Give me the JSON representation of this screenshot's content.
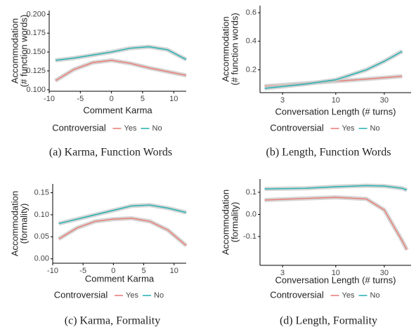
{
  "chart_data": [
    {
      "type": "line",
      "caption": "(a) Karma, Function Words",
      "xlabel": "Comment Karma",
      "ylabel": [
        "Accommodation",
        "(# function words)"
      ],
      "legend_title": "Controversial",
      "xlim": [
        -10,
        12
      ],
      "xticks": [
        -10,
        -5,
        0,
        5,
        10
      ],
      "ylim": [
        0.098,
        0.205
      ],
      "yticks": [
        {
          "value": 0.1,
          "label": "0.100"
        },
        0.125,
        {
          "value": 0.15,
          "label": "0.150"
        },
        0.175,
        {
          "value": 0.2,
          "label": "0.200"
        }
      ],
      "x": [
        -9,
        -6,
        -3,
        0,
        3,
        6,
        9,
        12
      ],
      "series": [
        {
          "name": "Yes",
          "color": "#e8827a",
          "values": [
            0.112,
            0.127,
            0.136,
            0.139,
            0.135,
            0.129,
            0.124,
            0.119
          ]
        },
        {
          "name": "No",
          "color": "#2fb3b3",
          "values": [
            0.139,
            0.142,
            0.146,
            0.15,
            0.155,
            0.157,
            0.153,
            0.14
          ]
        }
      ]
    },
    {
      "type": "line",
      "caption": "(b) Length, Function Words",
      "xlabel": "Conversation Length (# turns)",
      "ylabel": [
        "Accommodation",
        "(# function words)"
      ],
      "legend_title": "Controversial",
      "xlog": true,
      "xlim": [
        1.8,
        55
      ],
      "xticks": [
        3,
        10,
        30
      ],
      "ylim": [
        0.04,
        0.65
      ],
      "yticks": [
        0.2,
        0.4,
        0.6
      ],
      "x": [
        2,
        5,
        10,
        20,
        30,
        45
      ],
      "series": [
        {
          "name": "Yes",
          "color": "#e8827a",
          "values": [
            0.085,
            0.105,
            0.12,
            0.135,
            0.145,
            0.155
          ]
        },
        {
          "name": "No",
          "color": "#2fb3b3",
          "values": [
            0.07,
            0.1,
            0.13,
            0.2,
            0.26,
            0.33
          ]
        }
      ]
    },
    {
      "type": "line",
      "caption": "(c) Karma, Formality",
      "xlabel": "Comment Karma",
      "ylabel": [
        "Accommodation",
        "(formality)"
      ],
      "legend_title": "Controversial",
      "xlim": [
        -10,
        12
      ],
      "xticks": [
        -10,
        -5,
        0,
        5,
        10
      ],
      "ylim": [
        -0.01,
        0.17
      ],
      "yticks": [
        {
          "value": 0,
          "label": "0.00"
        },
        0.05,
        {
          "value": 0.1,
          "label": "0.10"
        },
        0.15
      ],
      "x": [
        -9,
        -6,
        -3,
        0,
        3,
        6,
        9,
        12
      ],
      "series": [
        {
          "name": "Yes",
          "color": "#e8827a",
          "values": [
            0.045,
            0.07,
            0.085,
            0.09,
            0.092,
            0.085,
            0.065,
            0.03
          ]
        },
        {
          "name": "No",
          "color": "#2fb3b3",
          "values": [
            0.08,
            0.09,
            0.1,
            0.11,
            0.12,
            0.122,
            0.115,
            0.105
          ]
        }
      ]
    },
    {
      "type": "line",
      "caption": "(d) Length, Formality",
      "xlabel": "Conversation Length (# turns)",
      "ylabel": [
        "Accommodation",
        "(formality)"
      ],
      "legend_title": "Controversial",
      "xlog": true,
      "xlim": [
        1.8,
        55
      ],
      "xticks": [
        3,
        10,
        30
      ],
      "ylim": [
        -0.23,
        0.16
      ],
      "yticks": [
        -0.1,
        {
          "value": 0,
          "label": "0.0"
        },
        0.1
      ],
      "x": [
        2,
        5,
        10,
        20,
        30,
        45,
        50
      ],
      "series": [
        {
          "name": "Yes",
          "color": "#e8827a",
          "values": [
            0.065,
            0.072,
            0.077,
            0.07,
            0.02,
            -0.12,
            -0.16
          ]
        },
        {
          "name": "No",
          "color": "#2fb3b3",
          "values": [
            0.115,
            0.118,
            0.125,
            0.13,
            0.128,
            0.118,
            0.11
          ]
        }
      ]
    }
  ]
}
